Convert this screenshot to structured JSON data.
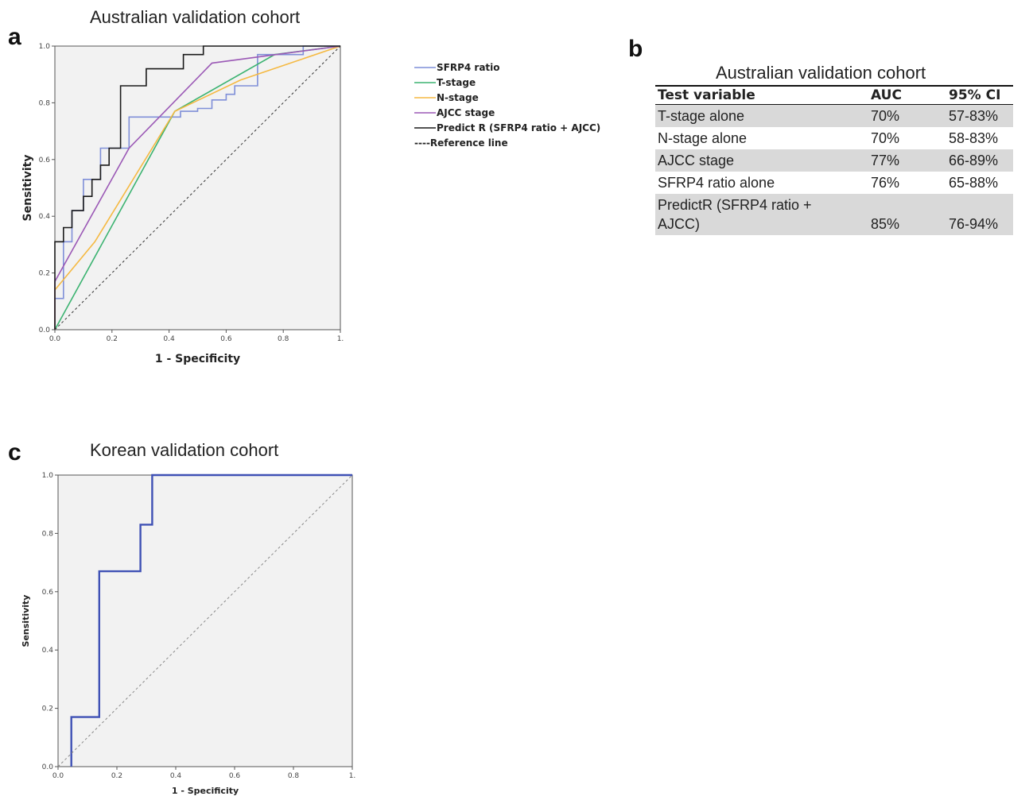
{
  "panels": {
    "a": "a",
    "b": "b",
    "c": "c"
  },
  "chart_data": [
    {
      "type": "line",
      "title": "Australian validation cohort",
      "xlabel": "1 - Specificity",
      "ylabel": "Sensitivity",
      "xlim": [
        0,
        1
      ],
      "ylim": [
        0,
        1
      ],
      "xticks": [
        "0.0",
        "0.2",
        "0.4",
        "0.6",
        "0.8",
        "1."
      ],
      "yticks": [
        "0.0",
        "0.2",
        "0.4",
        "0.6",
        "0.8",
        "1.0"
      ],
      "legend_position": "right-outside",
      "series": [
        {
          "name": "SFRP4 ratio",
          "color": "#7f8fd8",
          "step": true,
          "x": [
            0,
            0,
            0.03,
            0.03,
            0.06,
            0.06,
            0.1,
            0.1,
            0.16,
            0.16,
            0.26,
            0.26,
            0.44,
            0.44,
            0.5,
            0.5,
            0.55,
            0.55,
            0.6,
            0.6,
            0.63,
            0.63,
            0.71,
            0.71,
            0.87,
            0.87,
            1
          ],
          "y": [
            0.11,
            0.11,
            0.11,
            0.31,
            0.31,
            0.42,
            0.42,
            0.53,
            0.53,
            0.64,
            0.64,
            0.75,
            0.75,
            0.77,
            0.77,
            0.78,
            0.78,
            0.81,
            0.81,
            0.83,
            0.83,
            0.86,
            0.86,
            0.97,
            0.97,
            1,
            1
          ]
        },
        {
          "name": "T-stage",
          "color": "#3cb371",
          "x": [
            0,
            0.42,
            0.77,
            1
          ],
          "y": [
            0,
            0.77,
            0.97,
            1
          ]
        },
        {
          "name": "N-stage",
          "color": "#f5b942",
          "x": [
            0,
            0,
            0.14,
            0.42,
            0.65,
            1
          ],
          "y": [
            0,
            0.14,
            0.31,
            0.77,
            0.88,
            1
          ]
        },
        {
          "name": "AJCC stage",
          "color": "#9b59b6",
          "x": [
            0,
            0,
            0.26,
            0.55,
            1
          ],
          "y": [
            0,
            0.17,
            0.64,
            0.94,
            1
          ]
        },
        {
          "name": "Predict  R (SFRP4 ratio + AJCC)",
          "color": "#1a1a1a",
          "step": true,
          "x": [
            0,
            0,
            0.03,
            0.03,
            0.06,
            0.06,
            0.1,
            0.1,
            0.13,
            0.13,
            0.16,
            0.16,
            0.19,
            0.19,
            0.23,
            0.23,
            0.32,
            0.32,
            0.39,
            0.39,
            0.45,
            0.45,
            0.48,
            0.48,
            0.52,
            0.52,
            1
          ],
          "y": [
            0,
            0.31,
            0.31,
            0.36,
            0.36,
            0.42,
            0.42,
            0.47,
            0.47,
            0.53,
            0.53,
            0.58,
            0.58,
            0.64,
            0.64,
            0.86,
            0.86,
            0.92,
            0.92,
            0.92,
            0.92,
            0.97,
            0.97,
            0.97,
            0.97,
            1,
            1
          ]
        },
        {
          "name": "----Reference line",
          "color": "#333333",
          "dashed": true,
          "x": [
            0,
            1
          ],
          "y": [
            0,
            1
          ]
        }
      ]
    },
    {
      "type": "table",
      "title": "Australian validation cohort",
      "columns": [
        "Test variable",
        "AUC",
        "95%  CI"
      ],
      "rows": [
        {
          "variable": "T-stage alone",
          "auc": "70%",
          "ci": "57-83%"
        },
        {
          "variable": "N-stage alone",
          "auc": "70%",
          "ci": "58-83%"
        },
        {
          "variable": "AJCC stage",
          "auc": "77%",
          "ci": "66-89%"
        },
        {
          "variable": "SFRP4 ratio alone",
          "auc": "76%",
          "ci": "65-88%"
        },
        {
          "variable": "PredictR (SFRP4 ratio +",
          "variable2": "AJCC)",
          "auc": "85%",
          "ci": "76-94%"
        }
      ]
    },
    {
      "type": "line",
      "title": "Korean validation cohort",
      "xlabel": "1 - Specificity",
      "ylabel": "Sensitivity",
      "xlim": [
        0,
        1
      ],
      "ylim": [
        0,
        1
      ],
      "xticks": [
        "0.0",
        "0.2",
        "0.4",
        "0.6",
        "0.8",
        "1."
      ],
      "yticks": [
        "0.0",
        "0.2",
        "0.4",
        "0.6",
        "0.8",
        "1.0"
      ],
      "series": [
        {
          "color": "#3f51b5",
          "step": true,
          "x": [
            0.045,
            0.045,
            0.14,
            0.14,
            0.28,
            0.28,
            0.32,
            0.32,
            1
          ],
          "y": [
            0,
            0.17,
            0.17,
            0.67,
            0.67,
            0.83,
            0.83,
            1,
            1
          ]
        },
        {
          "color": "#888888",
          "dashed": true,
          "x": [
            0,
            1
          ],
          "y": [
            0,
            1
          ]
        }
      ]
    }
  ]
}
